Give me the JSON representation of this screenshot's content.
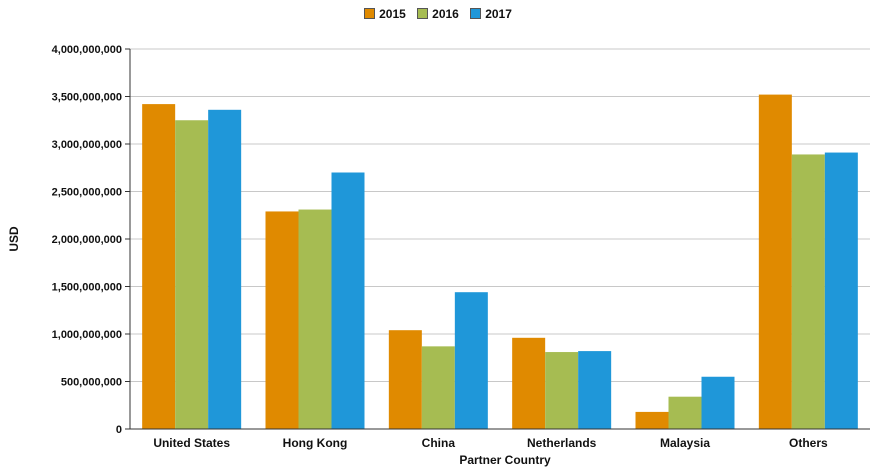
{
  "chart_data": {
    "type": "bar",
    "xlabel": "Partner Country",
    "ylabel": "USD",
    "ylim": [
      0,
      4000000000
    ],
    "yticks": [
      0,
      500000000,
      1000000000,
      1500000000,
      2000000000,
      2500000000,
      3000000000,
      3500000000,
      4000000000
    ],
    "ytick_labels": [
      "0",
      "500,000,000",
      "1,000,000,000",
      "1,500,000,000",
      "2,000,000,000",
      "2,500,000,000",
      "3,000,000,000",
      "3,500,000,000",
      "4,000,000,000"
    ],
    "categories": [
      "United States",
      "Hong Kong",
      "China",
      "Netherlands",
      "Malaysia",
      "Others"
    ],
    "series": [
      {
        "name": "2015",
        "color": "#e08a00",
        "values": [
          3420000000,
          2290000000,
          1040000000,
          960000000,
          180000000,
          3520000000
        ]
      },
      {
        "name": "2016",
        "color": "#a6bc52",
        "values": [
          3250000000,
          2310000000,
          870000000,
          810000000,
          340000000,
          2890000000
        ]
      },
      {
        "name": "2017",
        "color": "#1f97d9",
        "values": [
          3360000000,
          2700000000,
          1440000000,
          820000000,
          550000000,
          2910000000
        ]
      }
    ],
    "grid": true,
    "legend_position": "top-center"
  }
}
